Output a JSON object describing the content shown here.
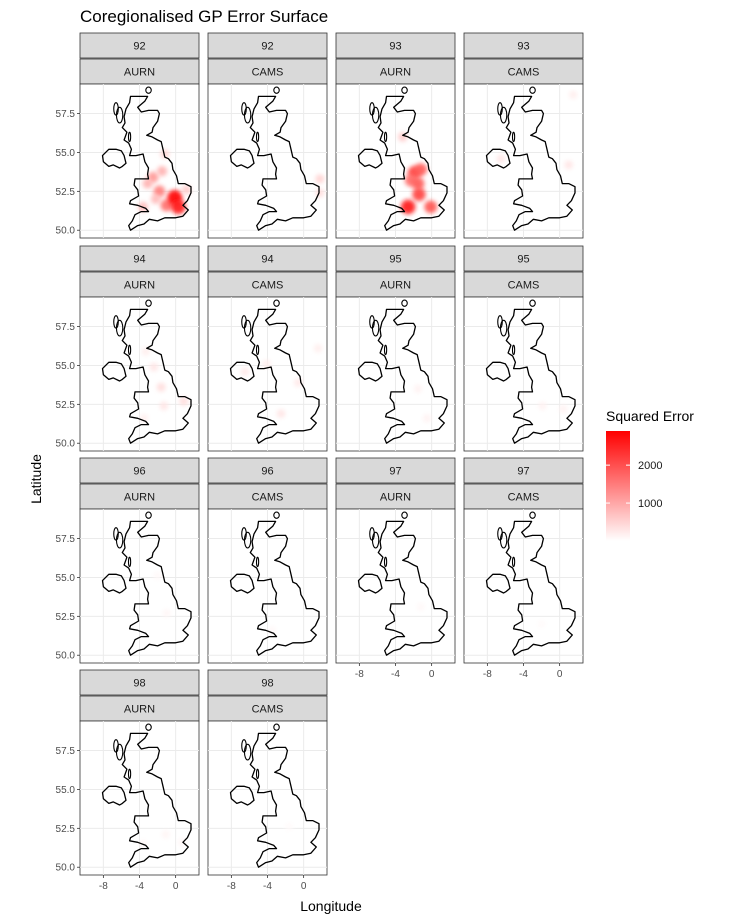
{
  "chart_data": {
    "type": "heatmap",
    "title": "Coregionalised GP Error Surface",
    "xlabel": "Longitude",
    "ylabel": "Latitude",
    "xlim": [
      -10.5,
      2.5
    ],
    "ylim": [
      49.5,
      59.4
    ],
    "x_ticks": [
      -8,
      -4,
      0
    ],
    "x_tick_labels": [
      "-8",
      "-4",
      "0"
    ],
    "y_ticks": [
      50.0,
      52.5,
      55.0,
      57.5
    ],
    "y_tick_labels": [
      "50.0",
      "52.5",
      "55.0",
      "57.5"
    ],
    "grid": true,
    "legend": {
      "title": "Squared Error",
      "position": "right",
      "range": [
        0,
        2900
      ],
      "ticks": [
        1000,
        2000
      ],
      "tick_labels": [
        "1000",
        "2000"
      ],
      "colors": [
        "#ffffff",
        "#ff0000"
      ]
    },
    "panels": [
      {
        "time": "92",
        "source": "AURN",
        "points": [
          {
            "lon": -1.8,
            "lat": 52.5,
            "value": 1500
          },
          {
            "lon": -2.5,
            "lat": 53.4,
            "value": 1200
          },
          {
            "lon": -1.5,
            "lat": 53.8,
            "value": 900
          },
          {
            "lon": -1.2,
            "lat": 54.9,
            "value": 500
          },
          {
            "lon": -2.2,
            "lat": 52.0,
            "value": 800
          },
          {
            "lon": -1.0,
            "lat": 51.6,
            "value": 1700
          },
          {
            "lon": -0.1,
            "lat": 52.1,
            "value": 2900
          },
          {
            "lon": 0.3,
            "lat": 51.5,
            "value": 2700
          },
          {
            "lon": -3.6,
            "lat": 51.5,
            "value": 800
          },
          {
            "lon": -3.1,
            "lat": 53.0,
            "value": 900
          },
          {
            "lon": 1.2,
            "lat": 52.6,
            "value": 600
          }
        ]
      },
      {
        "time": "92",
        "source": "CAMS",
        "points": [
          {
            "lon": 1.8,
            "lat": 53.3,
            "value": 500
          },
          {
            "lon": 1.8,
            "lat": 52.4,
            "value": 400
          }
        ]
      },
      {
        "time": "93",
        "source": "AURN",
        "points": [
          {
            "lon": -1.9,
            "lat": 53.7,
            "value": 2200
          },
          {
            "lon": -1.2,
            "lat": 53.9,
            "value": 1900
          },
          {
            "lon": -2.3,
            "lat": 53.2,
            "value": 1700
          },
          {
            "lon": -1.5,
            "lat": 53.0,
            "value": 1900
          },
          {
            "lon": -1.4,
            "lat": 52.3,
            "value": 2200
          },
          {
            "lon": -0.1,
            "lat": 51.5,
            "value": 2000
          },
          {
            "lon": -2.6,
            "lat": 51.5,
            "value": 2700
          },
          {
            "lon": -3.2,
            "lat": 56.0,
            "value": 600
          }
        ]
      },
      {
        "time": "93",
        "source": "CAMS",
        "points": [
          {
            "lon": -6.5,
            "lat": 54.6,
            "value": 300
          },
          {
            "lon": 1.0,
            "lat": 54.2,
            "value": 300
          },
          {
            "lon": 1.5,
            "lat": 58.7,
            "value": 200
          }
        ]
      },
      {
        "time": "94",
        "source": "AURN",
        "points": [
          {
            "lon": -1.6,
            "lat": 53.6,
            "value": 400
          },
          {
            "lon": -1.3,
            "lat": 52.4,
            "value": 300
          },
          {
            "lon": 0.9,
            "lat": 52.7,
            "value": 400
          },
          {
            "lon": -2.4,
            "lat": 54.9,
            "value": 300
          },
          {
            "lon": -3.3,
            "lat": 55.9,
            "value": 200
          },
          {
            "lon": -3.5,
            "lat": 51.6,
            "value": 200
          }
        ]
      },
      {
        "time": "94",
        "source": "CAMS",
        "points": [
          {
            "lon": -2.5,
            "lat": 51.9,
            "value": 300
          },
          {
            "lon": -0.6,
            "lat": 53.9,
            "value": 250
          },
          {
            "lon": -6.5,
            "lat": 54.6,
            "value": 250
          },
          {
            "lon": 1.6,
            "lat": 56.1,
            "value": 200
          },
          {
            "lon": -4.1,
            "lat": 55.1,
            "value": 200
          }
        ]
      },
      {
        "time": "95",
        "source": "AURN",
        "points": [
          {
            "lon": -1.5,
            "lat": 53.5,
            "value": 150
          },
          {
            "lon": -0.5,
            "lat": 51.6,
            "value": 150
          }
        ]
      },
      {
        "time": "95",
        "source": "CAMS",
        "points": [
          {
            "lon": -1.9,
            "lat": 52.4,
            "value": 150
          },
          {
            "lon": 0.4,
            "lat": 52.2,
            "value": 150
          }
        ]
      },
      {
        "time": "96",
        "source": "AURN",
        "points": [
          {
            "lon": -1.0,
            "lat": 52.7,
            "value": 100
          },
          {
            "lon": -2.0,
            "lat": 55.1,
            "value": 80
          }
        ]
      },
      {
        "time": "96",
        "source": "CAMS",
        "points": [
          {
            "lon": -3.5,
            "lat": 51.6,
            "value": 80
          }
        ]
      },
      {
        "time": "97",
        "source": "AURN",
        "points": [
          {
            "lon": -1.2,
            "lat": 53.1,
            "value": 80
          }
        ]
      },
      {
        "time": "97",
        "source": "CAMS",
        "points": [
          {
            "lon": -2.0,
            "lat": 52.0,
            "value": 60
          }
        ]
      },
      {
        "time": "98",
        "source": "AURN",
        "points": [
          {
            "lon": -1.1,
            "lat": 52.1,
            "value": 120
          },
          {
            "lon": 0.7,
            "lat": 51.6,
            "value": 100
          },
          {
            "lon": -3.6,
            "lat": 51.5,
            "value": 100
          }
        ]
      },
      {
        "time": "98",
        "source": "CAMS",
        "points": [
          {
            "lon": -1.6,
            "lat": 52.6,
            "value": 60
          }
        ]
      }
    ]
  }
}
